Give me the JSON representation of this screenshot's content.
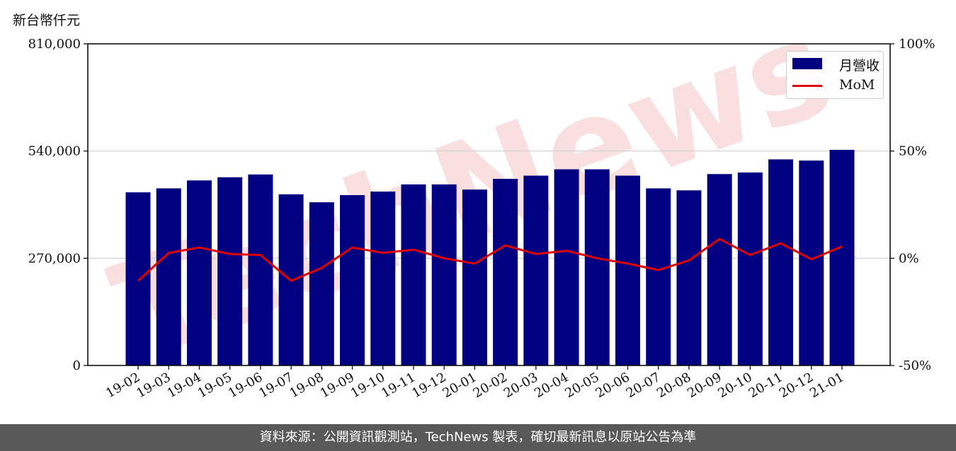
{
  "unit_label": "新台幣仟元",
  "footer": {
    "text": "資料來源：公開資訊觀測站，TechNews 製表，確切最新訊息以原站公告為準"
  },
  "watermark": {
    "text": "TechNews",
    "color": "#f2b8b8"
  },
  "colors": {
    "bar": "#000080",
    "line": "#e00000",
    "grid": "#d9d9d9",
    "footer_bg": "#595959"
  },
  "chart_data": {
    "type": "bar",
    "categories": [
      "19-02",
      "19-03",
      "19-04",
      "19-05",
      "19-06",
      "19-07",
      "19-08",
      "19-09",
      "19-10",
      "19-11",
      "19-12",
      "20-01",
      "20-02",
      "20-03",
      "20-04",
      "20-05",
      "20-06",
      "20-07",
      "20-08",
      "20-09",
      "20-10",
      "20-11",
      "20-12",
      "21-01"
    ],
    "series": [
      {
        "name": "月營收",
        "type": "bar",
        "axis": "left",
        "values": [
          436000,
          446000,
          466000,
          474000,
          481000,
          431000,
          411000,
          429000,
          438000,
          456000,
          456000,
          443000,
          470000,
          478000,
          494000,
          494000,
          478000,
          446000,
          441000,
          482000,
          486000,
          519000,
          516000,
          543000
        ]
      },
      {
        "name": "MoM",
        "type": "line",
        "axis": "right",
        "values": [
          -10.5,
          2.5,
          5.0,
          2.0,
          1.5,
          -10.5,
          -4.5,
          5.0,
          2.5,
          4.0,
          0.0,
          -2.5,
          6.0,
          2.0,
          3.5,
          0.0,
          -2.5,
          -5.5,
          -1.0,
          9.0,
          1.5,
          7.0,
          -0.5,
          5.5
        ]
      }
    ],
    "ylabel": "",
    "left_axis": {
      "range": [
        0,
        810000
      ],
      "ticks": [
        0,
        270000,
        540000,
        810000
      ],
      "tick_labels": [
        "0",
        "270,000",
        "540,000",
        "810,000"
      ]
    },
    "right_axis": {
      "range": [
        -50,
        100
      ],
      "ticks": [
        -50,
        0,
        50,
        100
      ],
      "tick_labels": [
        "-50%",
        "0%",
        "50%",
        "100%"
      ]
    },
    "grid": "horizontal",
    "legend": {
      "placement": "top-right",
      "entries": [
        "月營收",
        "MoM"
      ]
    }
  }
}
